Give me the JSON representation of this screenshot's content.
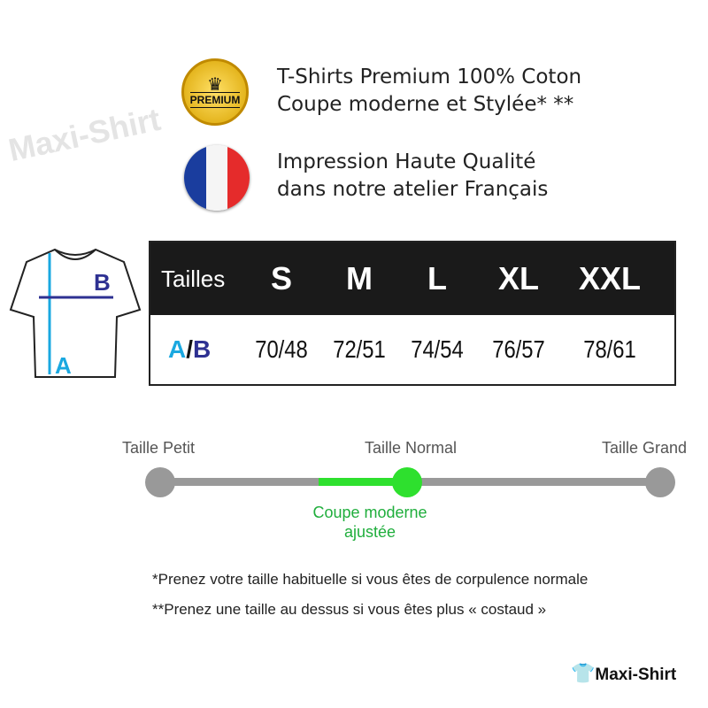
{
  "watermark": "Maxi-Shirt",
  "features": [
    {
      "icon": "premium-badge-icon",
      "badge_text": "PREMIUM",
      "line1": "T-Shirts Premium 100% Coton",
      "line2": "Coupe moderne et Stylée* **"
    },
    {
      "icon": "france-flag-icon",
      "line1": "Impression Haute Qualité",
      "line2": "dans notre atelier Français"
    }
  ],
  "shirt": {
    "label_a": "A",
    "label_b": "B",
    "color_a": "#1aa8e0",
    "color_b": "#2e3192"
  },
  "size_table": {
    "header_label": "Tailles",
    "sizes": [
      "S",
      "M",
      "L",
      "XL",
      "XXL"
    ],
    "row_label_a": "A",
    "row_label_sep": "/",
    "row_label_b": "B",
    "values": [
      "70/48",
      "72/51",
      "74/54",
      "76/57",
      "78/61"
    ]
  },
  "fit_scale": {
    "left": "Taille Petit",
    "middle": "Taille Normal",
    "right": "Taille Grand",
    "selected_line1": "Coupe moderne",
    "selected_line2": "ajustée",
    "accent": "#2ee02e"
  },
  "notes": [
    "*Prenez votre taille habituelle si vous êtes de corpulence normale",
    "**Prenez une taille au dessus si vous êtes plus « costaud »"
  ],
  "logo": "Maxi-Shirt"
}
